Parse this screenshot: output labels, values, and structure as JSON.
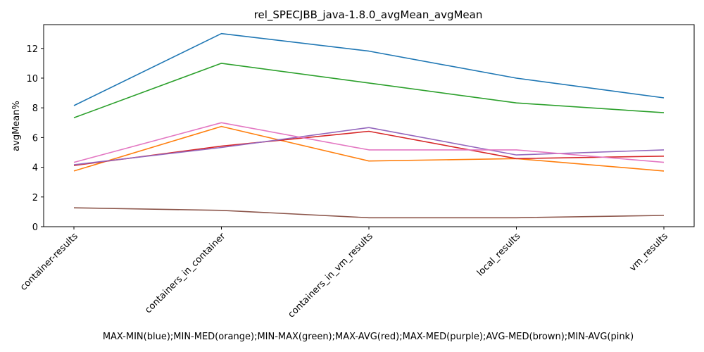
{
  "chart_data": {
    "type": "line",
    "title": "rel_SPECJBB_java-1.8.0_avgMean_avgMean",
    "xlabel": "MAX-MIN(blue);MIN-MED(orange);MIN-MAX(green);MAX-AVG(red);MAX-MED(purple);AVG-MED(brown);MIN-AVG(pink)",
    "ylabel": "avgMean%",
    "categories": [
      "container-results",
      "containers_in_container",
      "containers_in_vm_results",
      "local_results",
      "vm_results"
    ],
    "ylim": [
      0,
      13.6
    ],
    "yticks": [
      0,
      2,
      4,
      6,
      8,
      10,
      12
    ],
    "grid": false,
    "legend": "none",
    "series": [
      {
        "color": "#1f77b4",
        "values": [
          8.15,
          13.0,
          11.82,
          10.0,
          8.67
        ]
      },
      {
        "color": "#ff7f0e",
        "values": [
          3.75,
          6.75,
          4.42,
          4.58,
          3.75
        ]
      },
      {
        "color": "#2ca02c",
        "values": [
          7.33,
          11.0,
          9.67,
          8.33,
          7.67
        ]
      },
      {
        "color": "#d62728",
        "values": [
          4.12,
          5.42,
          6.42,
          4.58,
          4.75
        ]
      },
      {
        "color": "#9467bd",
        "values": [
          4.17,
          5.33,
          6.67,
          4.83,
          5.17
        ]
      },
      {
        "color": "#8c564b",
        "values": [
          1.27,
          1.1,
          0.6,
          0.6,
          0.76
        ]
      },
      {
        "color": "#e377c2",
        "values": [
          4.33,
          7.0,
          5.17,
          5.17,
          4.33
        ]
      }
    ]
  }
}
